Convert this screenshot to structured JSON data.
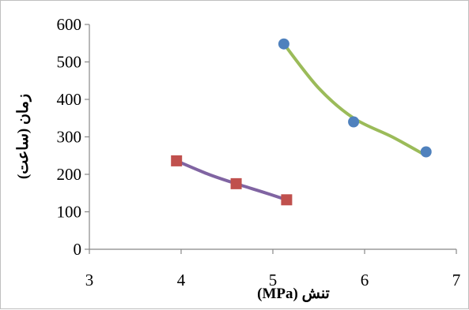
{
  "chart_data": {
    "type": "scatter",
    "xlabel": "تنش (MPa)",
    "ylabel": "زمان (ساعت)",
    "xlim": [
      3,
      7
    ],
    "ylim": [
      0,
      600
    ],
    "x_ticks": [
      "3",
      "4",
      "5",
      "6",
      "7"
    ],
    "y_ticks": [
      "0",
      "100",
      "200",
      "300",
      "400",
      "500",
      "600"
    ],
    "grid": false,
    "legend": "none",
    "series": [
      {
        "marker": "circle",
        "marker_color": "#4f81bd",
        "line_color": "#9bbb59",
        "points": [
          [
            5.12,
            548
          ],
          [
            5.88,
            340
          ],
          [
            6.67,
            260
          ]
        ],
        "trend": [
          [
            5.12,
            548
          ],
          [
            5.5,
            430
          ],
          [
            5.88,
            350
          ],
          [
            6.3,
            300
          ],
          [
            6.67,
            250
          ]
        ]
      },
      {
        "marker": "square",
        "marker_color": "#c0504d",
        "line_color": "#8064a2",
        "points": [
          [
            3.95,
            236
          ],
          [
            4.6,
            175
          ],
          [
            5.15,
            132
          ]
        ],
        "trend": [
          [
            3.95,
            236
          ],
          [
            4.3,
            200
          ],
          [
            4.6,
            175
          ],
          [
            4.9,
            152
          ],
          [
            5.15,
            132
          ]
        ]
      }
    ]
  }
}
